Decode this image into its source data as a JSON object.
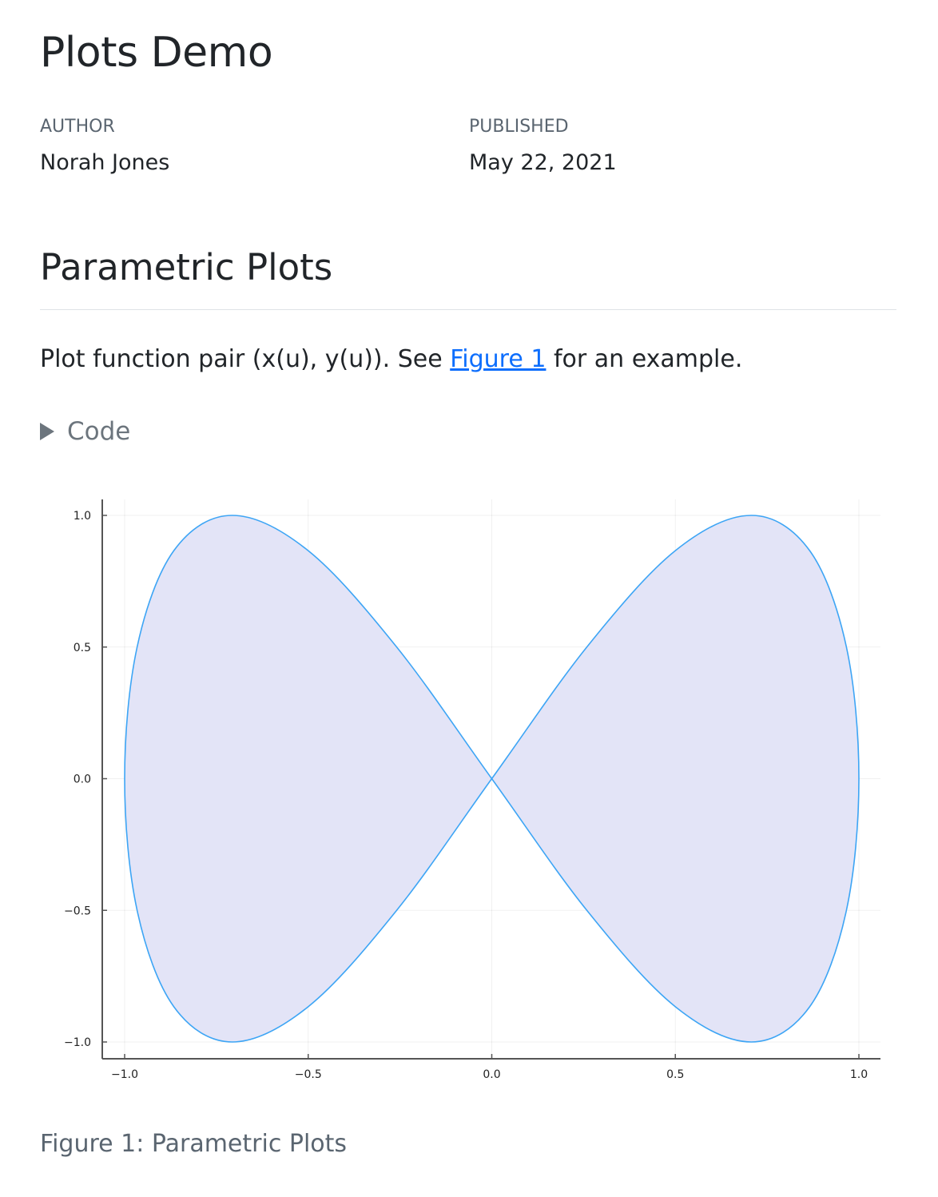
{
  "title": "Plots Demo",
  "meta": {
    "author_label": "AUTHOR",
    "author": "Norah Jones",
    "published_label": "PUBLISHED",
    "published": "May 22, 2021"
  },
  "section": {
    "heading": "Parametric Plots",
    "para_before": "Plot function pair (x(u), y(u)). See ",
    "link": "Figure 1",
    "para_after": " for an example.",
    "code_toggle": "Code"
  },
  "caption": "Figure 1: Parametric Plots",
  "chart_data": {
    "type": "line",
    "fill": true,
    "line_color": "#3da5f5",
    "fill_color": "#e3e4f7",
    "xlim": [
      -1.06,
      1.06
    ],
    "ylim": [
      -1.06,
      1.06
    ],
    "xticks": [
      -1.0,
      -0.5,
      0.0,
      0.5,
      1.0
    ],
    "yticks": [
      -1.0,
      -0.5,
      0.0,
      0.5,
      1.0
    ],
    "xtick_labels": [
      "−1.0",
      "−0.5",
      "0.0",
      "0.5",
      "1.0"
    ],
    "ytick_labels": [
      "−1.0",
      "−0.5",
      "0.0",
      "0.5",
      "1.0"
    ],
    "grid": true,
    "legend": "none",
    "x": [
      1,
      0.966,
      0.866,
      0.707,
      0.5,
      0.259,
      0,
      -0.259,
      -0.5,
      -0.707,
      -0.866,
      -0.966,
      -1,
      -0.966,
      -0.866,
      -0.707,
      -0.5,
      -0.259,
      0,
      0.259,
      0.5,
      0.707,
      0.866,
      0.966,
      1
    ],
    "y": [
      0,
      0.5,
      0.866,
      1,
      0.866,
      0.5,
      0,
      -0.5,
      -0.866,
      -1,
      -0.866,
      -0.5,
      0,
      0.5,
      0.866,
      1,
      0.866,
      0.5,
      0,
      -0.5,
      -0.866,
      -1,
      -0.866,
      -0.5,
      0
    ]
  }
}
